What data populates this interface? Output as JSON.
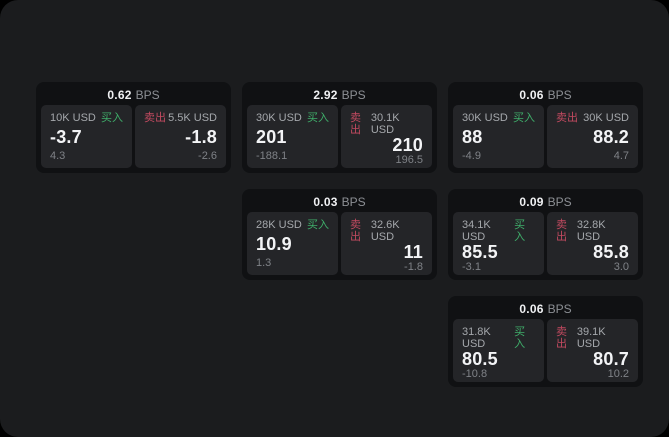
{
  "labels": {
    "buy": "买入",
    "sell": "卖出",
    "bps_unit": "BPS"
  },
  "colors": {
    "buy_green": "#3fae6a",
    "sell_red": "#c24a60",
    "page_bg": "#1b1c1e",
    "card_bg": "#101113",
    "panel_bg": "#242528"
  },
  "cards": [
    {
      "bps": "0.62",
      "buy": {
        "amount": "10K USD",
        "value": "-3.7",
        "sub": "4.3"
      },
      "sell": {
        "amount": "5.5K USD",
        "value": "-1.8",
        "sub": "-2.6"
      }
    },
    {
      "bps": "2.92",
      "buy": {
        "amount": "30K USD",
        "value": "201",
        "sub": "-188.1"
      },
      "sell": {
        "amount": "30.1K USD",
        "value": "210",
        "sub": "196.5"
      }
    },
    {
      "bps": "0.06",
      "buy": {
        "amount": "30K USD",
        "value": "88",
        "sub": "-4.9"
      },
      "sell": {
        "amount": "30K USD",
        "value": "88.2",
        "sub": "4.7"
      }
    },
    {
      "bps": "0.03",
      "buy": {
        "amount": "28K USD",
        "value": "10.9",
        "sub": "1.3"
      },
      "sell": {
        "amount": "32.6K USD",
        "value": "11",
        "sub": "-1.8"
      }
    },
    {
      "bps": "0.09",
      "buy": {
        "amount": "34.1K USD",
        "value": "85.5",
        "sub": "-3.1"
      },
      "sell": {
        "amount": "32.8K USD",
        "value": "85.8",
        "sub": "3.0"
      }
    },
    {
      "bps": "0.06",
      "buy": {
        "amount": "31.8K USD",
        "value": "80.5",
        "sub": "-10.8"
      },
      "sell": {
        "amount": "39.1K USD",
        "value": "80.7",
        "sub": "10.2"
      }
    }
  ]
}
